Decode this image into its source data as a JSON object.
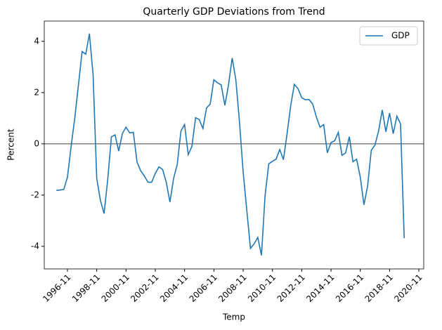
{
  "chart_data": {
    "type": "line",
    "title": "Quarterly GDP Deviations from Trend",
    "x_label": "Temp",
    "y_label": "Percent",
    "x": [
      "1996-02",
      "1996-05",
      "1996-08",
      "1996-11",
      "1997-02",
      "1997-05",
      "1997-08",
      "1997-11",
      "1998-02",
      "1998-05",
      "1998-08",
      "1998-11",
      "1999-02",
      "1999-05",
      "1999-08",
      "1999-11",
      "2000-02",
      "2000-05",
      "2000-08",
      "2000-11",
      "2001-02",
      "2001-05",
      "2001-08",
      "2001-11",
      "2002-02",
      "2002-05",
      "2002-08",
      "2002-11",
      "2003-02",
      "2003-05",
      "2003-08",
      "2003-11",
      "2004-02",
      "2004-05",
      "2004-08",
      "2004-11",
      "2005-02",
      "2005-05",
      "2005-08",
      "2005-11",
      "2006-02",
      "2006-05",
      "2006-08",
      "2006-11",
      "2007-02",
      "2007-05",
      "2007-08",
      "2007-11",
      "2008-02",
      "2008-05",
      "2008-08",
      "2008-11",
      "2009-02",
      "2009-05",
      "2009-08",
      "2009-11",
      "2010-02",
      "2010-05",
      "2010-08",
      "2010-11",
      "2011-02",
      "2011-05",
      "2011-08",
      "2011-11",
      "2012-02",
      "2012-05",
      "2012-08",
      "2012-11",
      "2013-02",
      "2013-05",
      "2013-08",
      "2013-11",
      "2014-02",
      "2014-05",
      "2014-08",
      "2014-11",
      "2015-02",
      "2015-05",
      "2015-08",
      "2015-11",
      "2016-02",
      "2016-05",
      "2016-08",
      "2016-11",
      "2017-02",
      "2017-05",
      "2017-08",
      "2017-11",
      "2018-02",
      "2018-05",
      "2018-08",
      "2018-11",
      "2019-02",
      "2019-05",
      "2019-08",
      "2019-11"
    ],
    "series": [
      {
        "name": "GDP",
        "color": "#1f77b4",
        "values": [
          -1.82,
          -1.8,
          -1.78,
          -1.3,
          -0.1,
          1.0,
          2.3,
          3.6,
          3.5,
          4.3,
          2.7,
          -1.35,
          -2.2,
          -2.72,
          -1.4,
          0.27,
          0.35,
          -0.28,
          0.4,
          0.65,
          0.43,
          0.45,
          -0.7,
          -1.05,
          -1.25,
          -1.5,
          -1.5,
          -1.15,
          -0.9,
          -1.0,
          -1.5,
          -2.27,
          -1.35,
          -0.8,
          0.5,
          0.75,
          -0.42,
          -0.1,
          1.02,
          0.95,
          0.6,
          1.4,
          1.55,
          2.5,
          2.38,
          2.3,
          1.5,
          2.3,
          3.35,
          2.5,
          0.85,
          -1.1,
          -2.6,
          -4.08,
          -3.9,
          -3.65,
          -4.35,
          -2.0,
          -0.78,
          -0.68,
          -0.6,
          -0.22,
          -0.62,
          0.4,
          1.5,
          2.32,
          2.15,
          1.8,
          1.72,
          1.73,
          1.55,
          1.05,
          0.65,
          0.75,
          -0.35,
          0.05,
          0.12,
          0.45,
          -0.45,
          -0.35,
          0.28,
          -0.7,
          -0.6,
          -1.3,
          -2.38,
          -1.65,
          -0.25,
          -0.05,
          0.5,
          1.32,
          0.47,
          1.2,
          0.4,
          1.08,
          0.78,
          -3.68
        ]
      }
    ],
    "xlim": [
      "1995-04",
      "2021-03"
    ],
    "xticks": [
      "1996-11",
      "1998-11",
      "2000-11",
      "2002-11",
      "2004-11",
      "2006-11",
      "2008-11",
      "2010-11",
      "2012-11",
      "2014-11",
      "2016-11",
      "2018-11",
      "2020-11"
    ],
    "ylim": [
      -4.88,
      4.79
    ],
    "yticks": [
      -4,
      -2,
      0,
      2,
      4
    ],
    "axhline": 0,
    "legend": "upper right",
    "grid": false
  }
}
